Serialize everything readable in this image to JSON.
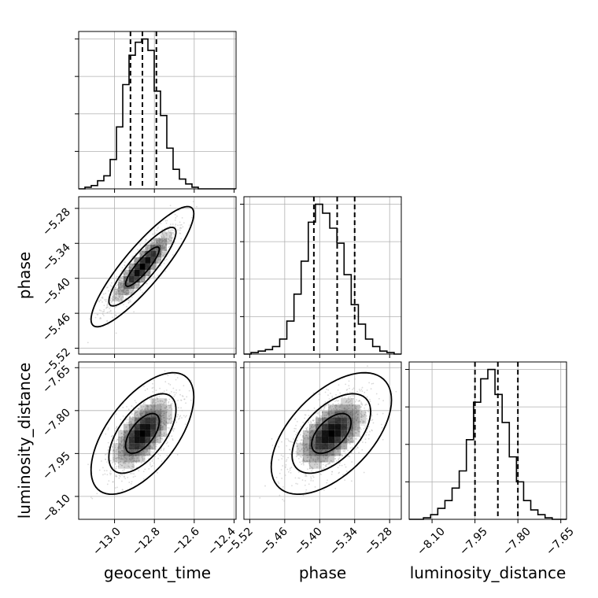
{
  "chart_data": {
    "type": "corner",
    "parameters": [
      "geocent_time",
      "phase",
      "luminosity_distance"
    ],
    "axis_labels": {
      "x": [
        "geocent_time",
        "phase",
        "luminosity_distance"
      ],
      "y": [
        "",
        "phase",
        "luminosity_distance"
      ]
    },
    "ranges": [
      [
        -13.18,
        -12.39
      ],
      [
        -5.53,
        -5.26
      ],
      [
        -8.18,
        -7.63
      ]
    ],
    "ticks": {
      "geocent_time": [
        "−13.0",
        "−12.8",
        "−12.6",
        "−12.4"
      ],
      "phase": [
        "−5.52",
        "−5.46",
        "−5.40",
        "−5.34",
        "−5.28"
      ],
      "luminosity_distance": [
        "−8.10",
        "−7.95",
        "−7.80",
        "−7.65"
      ]
    },
    "tick_values": {
      "geocent_time": [
        -13.0,
        -12.8,
        -12.6,
        -12.4
      ],
      "phase": [
        -5.52,
        -5.46,
        -5.4,
        -5.34,
        -5.28
      ],
      "luminosity_distance": [
        -8.1,
        -7.95,
        -7.8,
        -7.65
      ]
    },
    "quantiles": {
      "geocent_time": [
        -12.92,
        -12.86,
        -12.79
      ],
      "phase": [
        -5.41,
        -5.37,
        -5.34
      ],
      "luminosity_distance": [
        -7.95,
        -7.87,
        -7.8
      ]
    },
    "histograms": {
      "geocent_time": {
        "edges": [
          -13.18,
          -12.39
        ],
        "counts": [
          0,
          1,
          2,
          5,
          8,
          18,
          38,
          64,
          82,
          90,
          92,
          85,
          60,
          45,
          25,
          12,
          6,
          3,
          1,
          0,
          0,
          0,
          0,
          0,
          0
        ]
      },
      "phase": {
        "edges": [
          -5.53,
          -5.26
        ],
        "counts": [
          0,
          1,
          2,
          3,
          5,
          10,
          22,
          40,
          62,
          88,
          100,
          94,
          84,
          74,
          53,
          33,
          20,
          10,
          5,
          2,
          1,
          0
        ]
      },
      "luminosity_distance": {
        "edges": [
          -8.18,
          -7.63
        ],
        "counts": [
          0,
          0,
          1,
          3,
          7,
          12,
          20,
          31,
          51,
          75,
          90,
          96,
          80,
          62,
          40,
          24,
          12,
          6,
          3,
          1,
          0,
          0
        ]
      }
    },
    "pairs": [
      {
        "x": "geocent_time",
        "y": "phase",
        "mean": [
          -12.86,
          -5.38
        ],
        "std": [
          0.085,
          0.034
        ],
        "corr": 0.88
      },
      {
        "x": "geocent_time",
        "y": "luminosity_distance",
        "mean": [
          -12.86,
          -7.88
        ],
        "std": [
          0.085,
          0.07
        ],
        "corr": 0.6
      },
      {
        "x": "phase",
        "y": "luminosity_distance",
        "mean": [
          -5.38,
          -7.88
        ],
        "std": [
          0.034,
          0.07
        ],
        "corr": 0.55
      }
    ],
    "contour_levels": [
      0.39,
      0.86,
      0.99
    ],
    "grid": true,
    "colors": {
      "line": "#000000",
      "grid": "#b0b0b0",
      "points": "#bbbbbb",
      "density": "#000000"
    }
  }
}
